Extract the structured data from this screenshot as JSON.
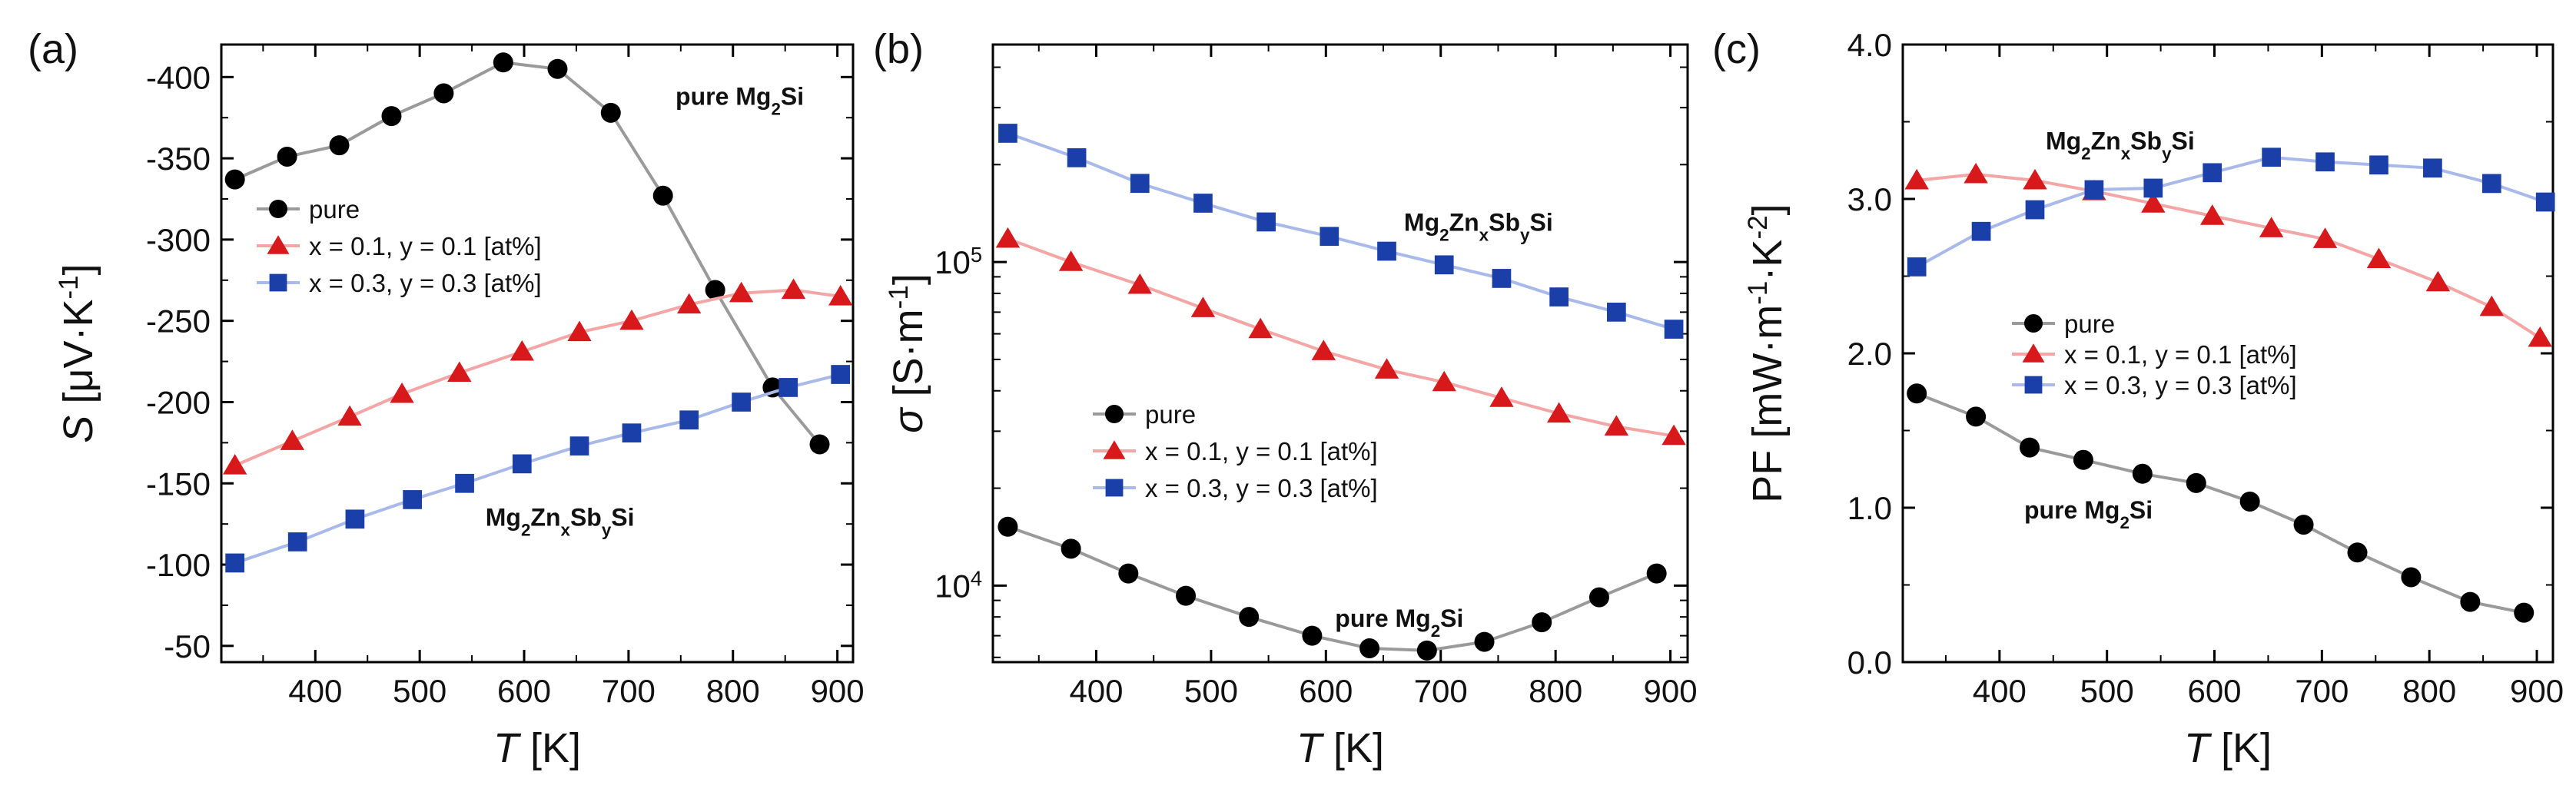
{
  "chart_data": [
    {
      "panel": "(a)",
      "type": "line",
      "ylabel": {
        "symbol": "S",
        "unit_prefix": "[μV·K",
        "unit_exp": "-1",
        "unit_suffix": "]"
      },
      "xlabel": {
        "symbol": "T",
        "unit": "[K]"
      },
      "xlim": [
        310,
        915
      ],
      "ylim": [
        -40,
        -420
      ],
      "x_ticks": [
        400,
        500,
        600,
        700,
        800,
        900
      ],
      "y_ticks": [
        -400,
        -350,
        -300,
        -250,
        -200,
        -150,
        -100,
        -50
      ],
      "legend_position": "center-left",
      "series": [
        {
          "name": "pure",
          "marker": "circle",
          "color": "#000000",
          "line_color": "#9a9a9a",
          "x": [
            323,
            373,
            423,
            473,
            523,
            580,
            632,
            683,
            733,
            783,
            838,
            883
          ],
          "y": [
            -337,
            -351,
            -358,
            -376,
            -390,
            -409,
            -405,
            -378,
            -327,
            -269,
            -209,
            -174
          ]
        },
        {
          "name": "x = 0.1, y = 0.1 [at%]",
          "marker": "triangle",
          "color": "#d7191c",
          "line_color": "#f4a6a6",
          "x": [
            323,
            378,
            433,
            483,
            538,
            598,
            653,
            703,
            758,
            808,
            858,
            903
          ],
          "y": [
            -161,
            -176,
            -191,
            -205,
            -218,
            -231,
            -243,
            -250,
            -260,
            -267,
            -269,
            -265
          ]
        },
        {
          "name": "x = 0.3, y = 0.3 [at%]",
          "marker": "square",
          "color": "#1a3fa8",
          "line_color": "#a9b9ea",
          "x": [
            323,
            383,
            438,
            493,
            543,
            598,
            653,
            703,
            758,
            808,
            853,
            903
          ],
          "y": [
            -101,
            -114,
            -128,
            -140,
            -150,
            -162,
            -173,
            -181,
            -189,
            -200,
            -209,
            -217
          ]
        }
      ],
      "annotations": [
        {
          "base": "pure Mg",
          "sub1": "2",
          "tail": "Si",
          "at": [
            745,
            -383
          ]
        },
        {
          "base": "Mg",
          "sub1": "2",
          "mid1": "Zn",
          "sub2": "x",
          "mid2": "Sb",
          "sub3": "y",
          "tail": "Si",
          "at": [
            563,
            -124
          ]
        }
      ]
    },
    {
      "panel": "(b)",
      "type": "line",
      "yscale": "log",
      "ylabel": {
        "symbol": "σ",
        "unit_prefix": "[S·m",
        "unit_exp": "-1",
        "unit_suffix": "]"
      },
      "xlabel": {
        "symbol": "T",
        "unit": "[K]"
      },
      "xlim": [
        310,
        915
      ],
      "ylim": [
        5800,
        470000
      ],
      "x_ticks": [
        400,
        500,
        600,
        700,
        800,
        900
      ],
      "y_ticks": [
        {
          "value": 10000,
          "base": "10",
          "exp": "4"
        },
        {
          "value": 100000,
          "base": "10",
          "exp": "5"
        }
      ],
      "legend_position": "lower-left",
      "series": [
        {
          "name": "pure",
          "marker": "circle",
          "color": "#000000",
          "line_color": "#9a9a9a",
          "x": [
            323,
            378,
            428,
            478,
            533,
            588,
            638,
            688,
            738,
            788,
            838,
            888
          ],
          "y": [
            15200,
            13000,
            10900,
            9300,
            8000,
            7000,
            6400,
            6300,
            6700,
            7700,
            9200,
            10900
          ]
        },
        {
          "name": "x = 0.1, y = 0.1 [at%]",
          "marker": "triangle",
          "color": "#d7191c",
          "line_color": "#f4a6a6",
          "x": [
            323,
            378,
            438,
            493,
            543,
            598,
            653,
            703,
            753,
            803,
            853,
            903
          ],
          "y": [
            118000,
            100000,
            85000,
            72000,
            62000,
            53000,
            46500,
            42500,
            38000,
            34000,
            31000,
            29000
          ]
        },
        {
          "name": "x = 0.3, y = 0.3 [at%]",
          "marker": "square",
          "color": "#1a3fa8",
          "line_color": "#a9b9ea",
          "x": [
            323,
            383,
            438,
            493,
            548,
            603,
            653,
            703,
            753,
            803,
            853,
            903
          ],
          "y": [
            250000,
            210000,
            175000,
            152000,
            133000,
            120000,
            108000,
            98000,
            89000,
            78000,
            70000,
            62000
          ]
        }
      ],
      "annotations": [
        {
          "base": "Mg",
          "sub1": "2",
          "mid1": "Zn",
          "sub2": "x",
          "mid2": "Sb",
          "sub3": "y",
          "tail": "Si",
          "at": [
            668,
            125000
          ]
        },
        {
          "base": "pure Mg",
          "sub1": "2",
          "tail": "Si",
          "at": [
            608,
            7450
          ]
        }
      ]
    },
    {
      "panel": "(c)",
      "type": "line",
      "ylabel": {
        "symbol": "PF",
        "unit_prefix": "[mW·m",
        "unit_exp1": "-1",
        "unit_mid": "·K",
        "unit_exp2": "-2",
        "unit_suffix": "]"
      },
      "xlabel": {
        "symbol": "T",
        "unit": "[K]"
      },
      "xlim": [
        310,
        915
      ],
      "ylim": [
        0,
        4
      ],
      "x_ticks": [
        400,
        500,
        600,
        700,
        800,
        900
      ],
      "y_ticks": [
        "0.0",
        "1.0",
        "2.0",
        "3.0",
        "4.0"
      ],
      "legend_position": "center-right",
      "series": [
        {
          "name": "pure",
          "marker": "circle",
          "color": "#000000",
          "line_color": "#9a9a9a",
          "x": [
            323,
            378,
            428,
            478,
            533,
            583,
            633,
            683,
            733,
            783,
            838,
            888
          ],
          "y": [
            1.74,
            1.59,
            1.39,
            1.31,
            1.22,
            1.16,
            1.04,
            0.89,
            0.71,
            0.55,
            0.39,
            0.32
          ]
        },
        {
          "name": "x = 0.1, y = 0.1 [at%]",
          "marker": "triangle",
          "color": "#d7191c",
          "line_color": "#f4a6a6",
          "x": [
            323,
            378,
            433,
            488,
            543,
            598,
            653,
            703,
            753,
            808,
            858,
            903
          ],
          "y": [
            3.12,
            3.16,
            3.12,
            3.05,
            2.97,
            2.89,
            2.81,
            2.74,
            2.61,
            2.46,
            2.3,
            2.1
          ]
        },
        {
          "name": "x = 0.3, y = 0.3 [at%]",
          "marker": "square",
          "color": "#1a3fa8",
          "line_color": "#a9b9ea",
          "x": [
            323,
            383,
            433,
            488,
            543,
            598,
            653,
            703,
            753,
            803,
            858,
            908
          ],
          "y": [
            2.56,
            2.79,
            2.93,
            3.06,
            3.07,
            3.17,
            3.27,
            3.24,
            3.22,
            3.2,
            3.1,
            2.98
          ]
        }
      ],
      "annotations": [
        {
          "base": "Mg",
          "sub1": "2",
          "mid1": "Zn",
          "sub2": "x",
          "mid2": "Sb",
          "sub3": "y",
          "tail": "Si",
          "at": [
            443,
            3.32
          ]
        },
        {
          "base": "pure Mg",
          "sub1": "2",
          "tail": "Si",
          "at": [
            423,
            0.93
          ]
        }
      ]
    }
  ]
}
